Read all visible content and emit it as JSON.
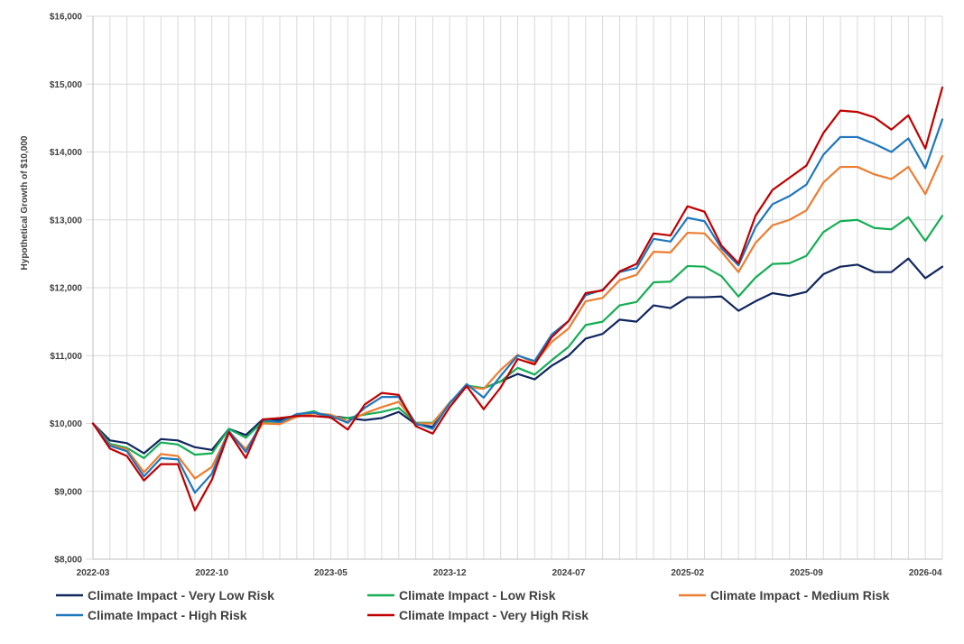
{
  "chart_data": {
    "type": "line",
    "title": "",
    "xlabel": "",
    "ylabel": "Hypothetical Growth of $10,000",
    "ylim": [
      8000,
      16000
    ],
    "yticks": [
      8000,
      9000,
      10000,
      11000,
      12000,
      13000,
      14000,
      15000,
      16000
    ],
    "ytick_labels": [
      "$8,000",
      "$9,000",
      "$10,000",
      "$11,000",
      "$12,000",
      "$13,000",
      "$14,000",
      "$15,000",
      "$16,000"
    ],
    "x_start": "2022-03",
    "x_tick_labels": [
      "2022-03",
      "2022-10",
      "2023-05",
      "2023-12",
      "2024-07",
      "2025-02",
      "2025-09",
      "2026-04"
    ],
    "grid": true,
    "legend_position": "bottom",
    "series": [
      {
        "name": "Climate Impact - Very Low Risk",
        "color": "#10265e",
        "values": [
          10000,
          9750,
          9710,
          9560,
          9770,
          9750,
          9650,
          9610,
          9920,
          9830,
          10060,
          10050,
          10100,
          10150,
          10110,
          10080,
          10050,
          10080,
          10170,
          9990,
          9950,
          10300,
          10550,
          10520,
          10620,
          10730,
          10650,
          10850,
          11000,
          11250,
          11320,
          11530,
          11500,
          11740,
          11700,
          11860,
          11860,
          11870,
          11660,
          11800,
          11920,
          11880,
          11940,
          12200,
          12310,
          12340,
          12230,
          12230,
          12430,
          12140,
          12310
        ]
      },
      {
        "name": "Climate Impact - Low Risk",
        "color": "#15ae54",
        "values": [
          10000,
          9700,
          9640,
          9490,
          9720,
          9690,
          9540,
          9560,
          9920,
          9790,
          10030,
          10020,
          10130,
          10180,
          10080,
          10080,
          10130,
          10170,
          10230,
          10010,
          10010,
          10300,
          10560,
          10520,
          10620,
          10820,
          10720,
          10930,
          11130,
          11450,
          11500,
          11740,
          11790,
          12080,
          12090,
          12320,
          12310,
          12170,
          11870,
          12150,
          12350,
          12360,
          12470,
          12820,
          12980,
          13000,
          12880,
          12860,
          13040,
          12690,
          13060
        ]
      },
      {
        "name": "Climate Impact - Medium Risk",
        "color": "#ed7d31",
        "values": [
          10000,
          9680,
          9620,
          9280,
          9550,
          9520,
          9190,
          9360,
          9880,
          9620,
          10000,
          9990,
          10100,
          10150,
          10130,
          10030,
          10150,
          10240,
          10320,
          10000,
          10000,
          10310,
          10540,
          10510,
          10790,
          11010,
          10890,
          11200,
          11400,
          11800,
          11850,
          12110,
          12190,
          12530,
          12520,
          12810,
          12800,
          12530,
          12230,
          12660,
          12920,
          13000,
          13140,
          13550,
          13780,
          13780,
          13670,
          13600,
          13780,
          13380,
          13940
        ]
      },
      {
        "name": "Climate Impact - High Risk",
        "color": "#1f77bd",
        "values": [
          10000,
          9670,
          9590,
          9220,
          9490,
          9470,
          8980,
          9260,
          9890,
          9580,
          10050,
          10020,
          10140,
          10160,
          10110,
          10010,
          10230,
          10390,
          10390,
          10000,
          9920,
          10300,
          10580,
          10380,
          10700,
          11000,
          10920,
          11310,
          11510,
          11890,
          11970,
          12230,
          12290,
          12720,
          12680,
          13030,
          12980,
          12580,
          12330,
          12890,
          13230,
          13350,
          13520,
          13960,
          14220,
          14220,
          14120,
          14000,
          14200,
          13760,
          14480
        ]
      },
      {
        "name": "Climate Impact - Very High Risk",
        "color": "#c00000",
        "values": [
          10000,
          9630,
          9520,
          9160,
          9400,
          9400,
          8720,
          9170,
          9870,
          9490,
          10060,
          10080,
          10110,
          10110,
          10090,
          9910,
          10280,
          10450,
          10420,
          9960,
          9850,
          10240,
          10550,
          10210,
          10530,
          10950,
          10870,
          11270,
          11510,
          11920,
          11960,
          12240,
          12350,
          12800,
          12770,
          13200,
          13120,
          12620,
          12360,
          13060,
          13440,
          13620,
          13800,
          14280,
          14610,
          14590,
          14510,
          14330,
          14540,
          14050,
          14950
        ]
      }
    ]
  }
}
